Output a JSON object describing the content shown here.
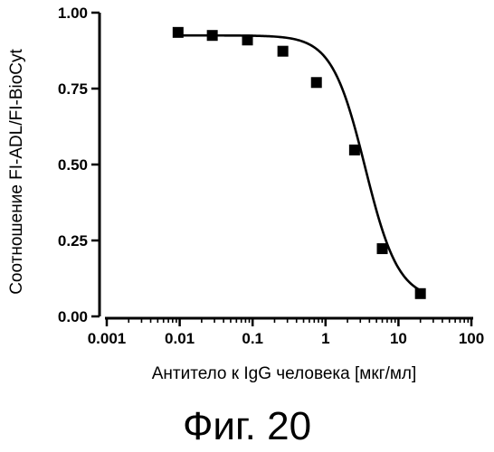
{
  "figure": {
    "caption": "Фиг. 20"
  },
  "chart_data": {
    "type": "line",
    "title": "",
    "xlabel": "Антитело к IgG человека [мкг/мл]",
    "ylabel": "Соотношение FI-ADL/FI-BioCyt",
    "xscale": "log",
    "xlim": [
      0.001,
      100
    ],
    "ylim": [
      0.0,
      1.0
    ],
    "x_ticks": [
      "0.001",
      "0.01",
      "0.1",
      "1",
      "10",
      "100"
    ],
    "y_ticks": [
      "0.00",
      "0.25",
      "0.50",
      "0.75",
      "1.00"
    ],
    "grid": false,
    "series": [
      {
        "marker": "square",
        "points": [
          {
            "x": 0.0095,
            "y": 0.935
          },
          {
            "x": 0.028,
            "y": 0.925
          },
          {
            "x": 0.085,
            "y": 0.91
          },
          {
            "x": 0.26,
            "y": 0.873
          },
          {
            "x": 0.75,
            "y": 0.77
          },
          {
            "x": 2.5,
            "y": 0.548
          },
          {
            "x": 6.0,
            "y": 0.223
          },
          {
            "x": 20.0,
            "y": 0.075
          }
        ],
        "fit": {
          "model": "4PL",
          "top": 0.925,
          "bottom": 0.055,
          "ec50": 3.5,
          "hill": 1.9,
          "x_range": [
            0.0095,
            20.0
          ]
        }
      }
    ]
  }
}
